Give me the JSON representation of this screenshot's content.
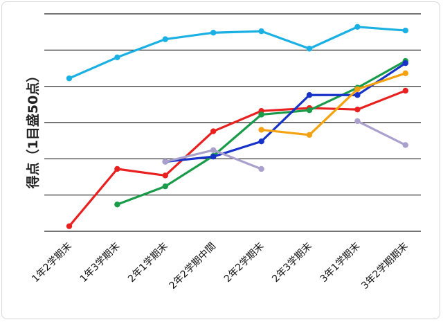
{
  "chart_data": {
    "type": "line",
    "title": "",
    "xlabel": "",
    "ylabel": "得点（1目盛50点）",
    "categories": [
      "1年2学期末",
      "1年3学期末",
      "2年1学期末",
      "2年2学期中間",
      "2年2学期末",
      "2年3学期末",
      "3年1学期末",
      "3年2学期期末"
    ],
    "ylim": [
      0,
      300
    ],
    "grid": true,
    "legend": "none",
    "series": [
      {
        "color": "#1ab0e3",
        "values": [
          211,
          240,
          265,
          274,
          276,
          252,
          282,
          277
        ]
      },
      {
        "color": "#e82020",
        "values": [
          7,
          86,
          77,
          138,
          166,
          170,
          168,
          194
        ]
      },
      {
        "color": "#1a9b4a",
        "values": [
          null,
          37,
          62,
          104,
          161,
          167,
          198,
          235
        ]
      },
      {
        "color": "#1632c8",
        "values": [
          null,
          null,
          96,
          103,
          124,
          188,
          188,
          232
        ]
      },
      {
        "color": "#aaa0cc",
        "values": [
          null,
          null,
          96,
          112,
          86,
          null,
          152,
          119
        ]
      },
      {
        "color": "#f5a210",
        "values": [
          null,
          null,
          null,
          null,
          140,
          133,
          196,
          218
        ]
      }
    ]
  }
}
